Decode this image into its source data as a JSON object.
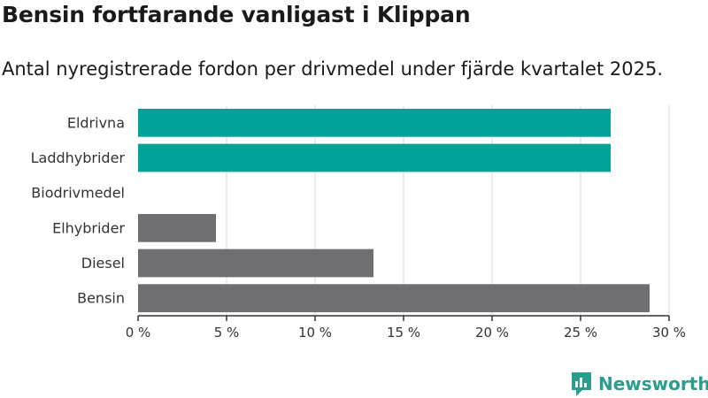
{
  "header": {
    "title": "Bensin fortfarande vanligast i Klippan",
    "subtitle": "Antal nyregistrerade fordon per drivmedel under fjärde kvartalet 2025."
  },
  "brand": {
    "name": "Newsworthy",
    "icon": "newsworthy-logo-icon",
    "color": "#2a9d8f"
  },
  "colors": {
    "highlight": "#00a398",
    "default": "#6e6e73",
    "grid": "#d9d9d9",
    "axis": "#333333"
  },
  "chart_data": {
    "type": "bar",
    "orientation": "horizontal",
    "title": "Bensin fortfarande vanligast i Klippan",
    "subtitle": "Antal nyregistrerade fordon per drivmedel under fjärde kvartalet 2025.",
    "categories": [
      "Eldrivna",
      "Laddhybrider",
      "Biodrivmedel",
      "Elhybrider",
      "Diesel",
      "Bensin"
    ],
    "values": [
      26.7,
      26.7,
      0,
      4.4,
      13.3,
      28.9
    ],
    "highlighted": [
      true,
      true,
      false,
      false,
      false,
      false
    ],
    "xlim": [
      0,
      30
    ],
    "xticks": [
      0,
      5,
      10,
      15,
      20,
      25,
      30
    ],
    "xtick_labels": [
      "0 %",
      "5 %",
      "10 %",
      "15 %",
      "20 %",
      "25 %",
      "30 %"
    ],
    "xlabel": "",
    "ylabel": "",
    "grid": "vertical"
  }
}
